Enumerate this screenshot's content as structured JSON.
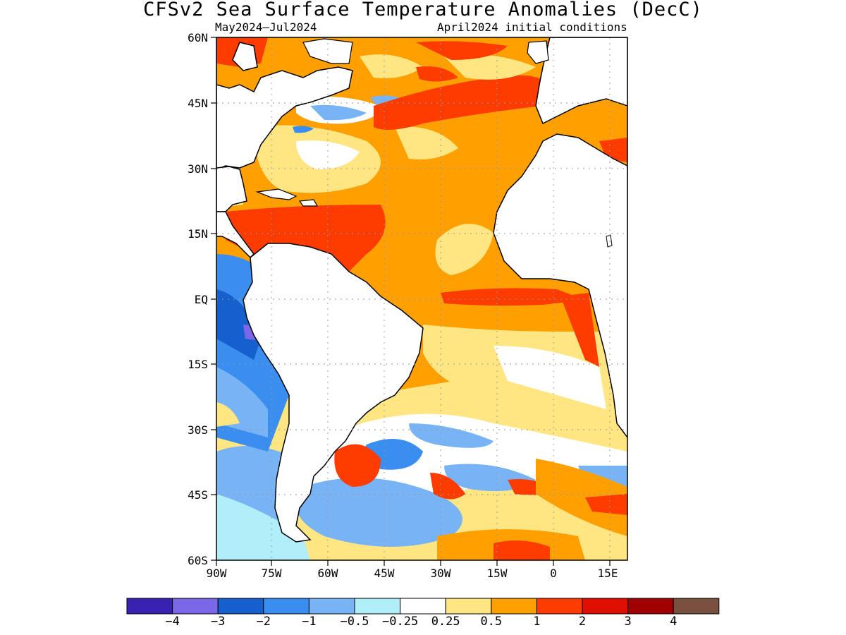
{
  "title": "CFSv2 Sea Surface Temperature Anomalies (DecC)",
  "subtitle_left": "May2024–Jul2024",
  "subtitle_right": "April2024 initial conditions",
  "lat_labels": [
    "60N",
    "45N",
    "30N",
    "15N",
    "EQ",
    "15S",
    "30S",
    "45S",
    "60S"
  ],
  "lon_labels": [
    "90W",
    "75W",
    "60W",
    "45W",
    "30W",
    "15W",
    "0",
    "15E"
  ],
  "colorbar": {
    "colors": [
      "#3a22b0",
      "#7b68e8",
      "#1560cc",
      "#3a8ef0",
      "#78b4f5",
      "#b0eefa",
      "#ffffff",
      "#ffe682",
      "#ffa000",
      "#ff3c00",
      "#e01000",
      "#a00000",
      "#7a5040"
    ],
    "labels": [
      "−4",
      "−3",
      "−2",
      "−1",
      "−0.5",
      "−0.25",
      "0.25",
      "0.5",
      "1",
      "2",
      "3",
      "4"
    ]
  },
  "legend_colors": {
    "land": "#ffffff",
    "coast": "#000000"
  }
}
